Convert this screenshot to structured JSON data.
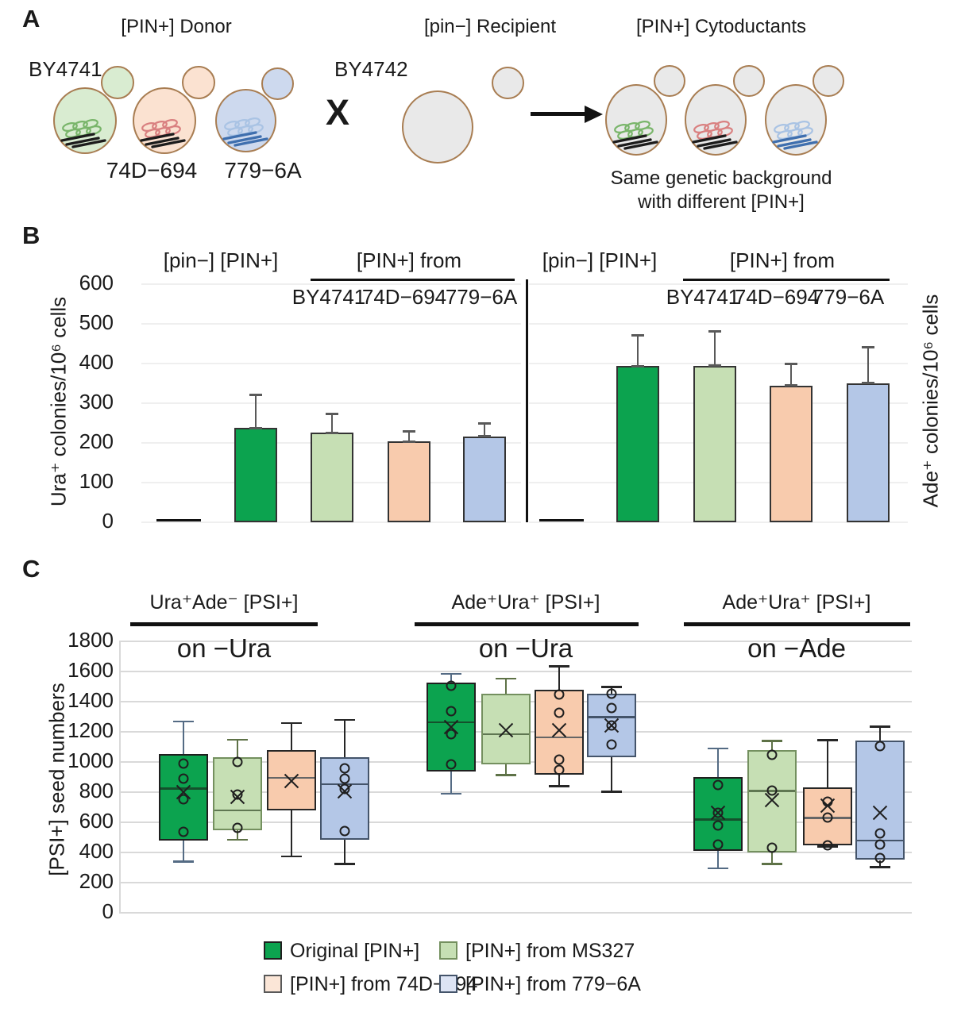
{
  "panel_labels": {
    "a": "A",
    "b": "B",
    "c": "C"
  },
  "panel_a": {
    "donor_title": "[PIN+] Donor",
    "recipient_title": "[pin−] Recipient",
    "cytoductants_title": "[PIN+] Cytoductants",
    "strains": [
      "BY4741",
      "74D−694",
      "779−6A"
    ],
    "recipient_strain": "BY4742",
    "cross": "X",
    "caption_line1": "Same genetic background",
    "caption_line2": "with different [PIN+]"
  },
  "colors": {
    "cells": {
      "green": "#d9ecd1",
      "orange": "#fbe2d1",
      "blue": "#cdd9ee",
      "gray": "#e9e9e9"
    },
    "cell_stroke": "#a87d52",
    "coils": {
      "green": {
        "loop": "#79b56a",
        "line": "#1c1c1c"
      },
      "red": {
        "loop": "#d98080",
        "line": "#1c1c1c"
      },
      "blue": {
        "loop": "#a9c3e4",
        "line": "#3f6fae"
      }
    },
    "series": {
      "original": {
        "fill": "#0CA34F",
        "border": "#1f1f1f",
        "median": "#14502c",
        "whisker": "#546b84"
      },
      "ms327": {
        "fill": "#C6DFB4",
        "border": "#74905f",
        "median": "#5f7752",
        "whisker": "#5e7247"
      },
      "74d694": {
        "fill": "#F8CBAD",
        "border": "#262626",
        "median": "#666666",
        "whisker": "#262626"
      },
      "779_6a": {
        "fill": "#B4C7E7",
        "border": "#44546a",
        "median": "#44546a",
        "whisker": "#262626"
      }
    },
    "error_bar": "#595959",
    "divider": "#111111"
  },
  "chart_data": [
    {
      "type": "bar",
      "panel": "B",
      "ylabel_left": "Ura⁺ colonies/10⁶ cells",
      "ylabel_right": "Ade⁺ colonies/10⁶ cells",
      "ylim": [
        0,
        600
      ],
      "yticks": [
        0,
        100,
        200,
        300,
        400,
        500,
        600
      ],
      "charts": [
        {
          "header_group1": "[pin−] [PIN+]",
          "header_group2": "[PIN+] from",
          "sublabels": [
            "BY4741",
            "74D−694",
            "779−6A"
          ],
          "bars": [
            {
              "name": "[pin−]",
              "series": "baseline",
              "value": 1,
              "err_high": null
            },
            {
              "name": "[PIN+] original",
              "series": "original",
              "value": 238,
              "err_high": 322
            },
            {
              "name": "[PIN+] from BY4741",
              "series": "ms327",
              "value": 226,
              "err_high": 273
            },
            {
              "name": "[PIN+] from 74D−694",
              "series": "74d694",
              "value": 204,
              "err_high": 230
            },
            {
              "name": "[PIN+] from 779−6A",
              "series": "779_6a",
              "value": 217,
              "err_high": 249
            }
          ]
        },
        {
          "header_group1": "[pin−] [PIN+]",
          "header_group2": "[PIN+] from",
          "sublabels": [
            "BY4741",
            "74D−694",
            "779−6A"
          ],
          "bars": [
            {
              "name": "[pin−]",
              "series": "baseline",
              "value": 1,
              "err_high": null
            },
            {
              "name": "[PIN+] original",
              "series": "original",
              "value": 394,
              "err_high": 472
            },
            {
              "name": "[PIN+] from BY4741",
              "series": "ms327",
              "value": 395,
              "err_high": 481
            },
            {
              "name": "[PIN+] from 74D−694",
              "series": "74d694",
              "value": 345,
              "err_high": 400
            },
            {
              "name": "[PIN+] from 779−6A",
              "series": "779_6a",
              "value": 351,
              "err_high": 442
            }
          ]
        }
      ]
    },
    {
      "type": "box",
      "panel": "C",
      "ylabel": "[PSI+] seed numbers",
      "ylim": [
        0,
        1800
      ],
      "yticks": [
        0,
        200,
        400,
        600,
        800,
        1000,
        1200,
        1400,
        1600,
        1800
      ],
      "groups": [
        {
          "title": "Ura⁺Ade⁻ [PSI+]",
          "subtitle": "on −Ura",
          "boxes": [
            {
              "series": "original",
              "whisker_low": 340,
              "q1": 480,
              "median": 825,
              "mean": 800,
              "q3": 1055,
              "whisker_high": 1270,
              "points": [
                990,
                890,
                755,
                535
              ]
            },
            {
              "series": "ms327",
              "whisker_low": 485,
              "q1": 545,
              "median": 680,
              "mean": 770,
              "q3": 1030,
              "whisker_high": 1150,
              "points": [
                1000,
                785,
                565
              ]
            },
            {
              "series": "74d694",
              "whisker_low": 375,
              "q1": 680,
              "median": 895,
              "mean": 875,
              "q3": 1080,
              "whisker_high": 1260,
              "points": []
            },
            {
              "series": "779_6a",
              "whisker_low": 325,
              "q1": 485,
              "median": 855,
              "mean": 805,
              "q3": 1030,
              "whisker_high": 1280,
              "points": [
                960,
                890,
                820,
                540
              ]
            }
          ]
        },
        {
          "title": "Ade⁺Ura⁺ [PSI+]",
          "subtitle": "on −Ura",
          "boxes": [
            {
              "series": "original",
              "whisker_low": 790,
              "q1": 935,
              "median": 1265,
              "mean": 1230,
              "q3": 1525,
              "whisker_high": 1585,
              "points": [
                1505,
                1335,
                1185,
                985
              ]
            },
            {
              "series": "ms327",
              "whisker_low": 915,
              "q1": 985,
              "median": 1185,
              "mean": 1210,
              "q3": 1455,
              "whisker_high": 1555,
              "points": []
            },
            {
              "series": "74d694",
              "whisker_low": 840,
              "q1": 915,
              "median": 1165,
              "mean": 1210,
              "q3": 1480,
              "whisker_high": 1635,
              "points": [
                1445,
                1325,
                1015,
                945
              ]
            },
            {
              "series": "779_6a",
              "whisker_low": 805,
              "q1": 1030,
              "median": 1300,
              "mean": 1240,
              "q3": 1455,
              "whisker_high": 1500,
              "points": [
                1455,
                1360,
                1240,
                1115
              ]
            }
          ]
        },
        {
          "title": "Ade⁺Ura⁺ [PSI+]",
          "subtitle": "on −Ade",
          "boxes": [
            {
              "series": "original",
              "whisker_low": 295,
              "q1": 410,
              "median": 620,
              "mean": 665,
              "q3": 900,
              "whisker_high": 1090,
              "points": [
                845,
                665,
                580,
                455
              ]
            },
            {
              "series": "ms327",
              "whisker_low": 325,
              "q1": 400,
              "median": 810,
              "mean": 745,
              "q3": 1080,
              "whisker_high": 1140,
              "points": [
                1050,
                810,
                430
              ]
            },
            {
              "series": "74d694",
              "whisker_low": 440,
              "q1": 445,
              "median": 630,
              "mean": 710,
              "q3": 830,
              "whisker_high": 1145,
              "points": [
                735,
                630,
                445
              ]
            },
            {
              "series": "779_6a",
              "whisker_low": 305,
              "q1": 350,
              "median": 480,
              "mean": 665,
              "q3": 1140,
              "whisker_high": 1235,
              "points": [
                1105,
                525,
                455,
                365
              ]
            }
          ]
        }
      ]
    }
  ],
  "legend": {
    "items": [
      {
        "label": "Original [PIN+]",
        "fill": "#0CA34F",
        "border": "#1f1f1f"
      },
      {
        "label": "[PIN+] from MS327",
        "fill": "#C6DFB4",
        "border": "#74905f"
      },
      {
        "label": "[PIN+] from 74D−694",
        "fill": "#FBE6D7",
        "border": "#595959"
      },
      {
        "label": "[PIN+] from 779−6A",
        "fill": "#DDE4F4",
        "border": "#44546a"
      }
    ]
  }
}
